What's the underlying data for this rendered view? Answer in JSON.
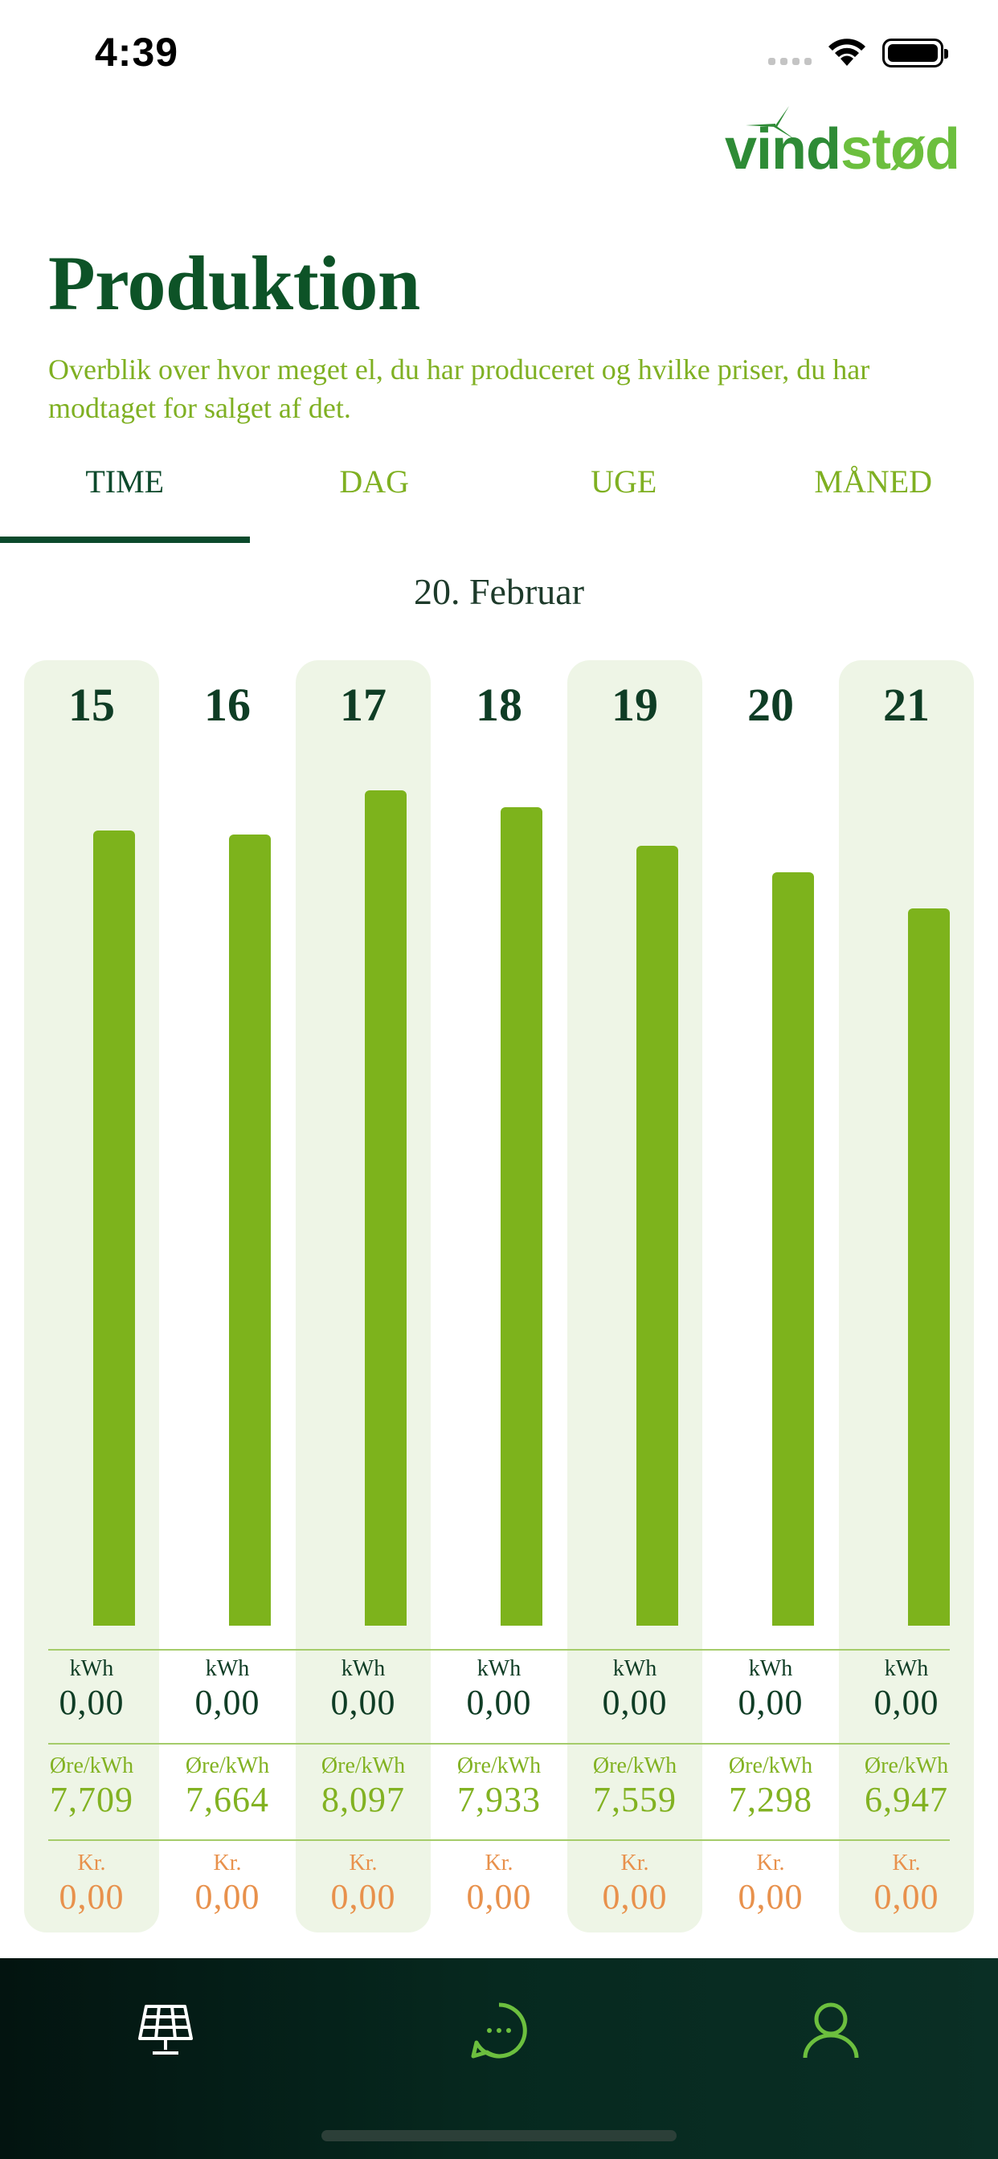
{
  "status_bar": {
    "time": "4:39"
  },
  "brand": {
    "name_part1": "vind",
    "name_part2": "stød",
    "color_dark": "#2e8b36",
    "color_light": "#6cbf3e"
  },
  "header": {
    "title": "Produktion",
    "subtitle": "Overblik over hvor meget el, du har produceret og hvilke priser, du har modtaget for salget af det."
  },
  "tabs": [
    {
      "label": "TIME",
      "active": true
    },
    {
      "label": "DAG",
      "active": false
    },
    {
      "label": "UGE",
      "active": false
    },
    {
      "label": "MÅNED",
      "active": false
    }
  ],
  "date_label": "20. Februar",
  "chart_data": {
    "type": "bar",
    "categories": [
      "15",
      "16",
      "17",
      "18",
      "19",
      "20",
      "21"
    ],
    "series": [
      {
        "values": [
          7.709,
          7.664,
          8.097,
          7.933,
          7.559,
          7.298,
          6.947
        ]
      }
    ]
  },
  "table": {
    "kwh_unit": "kWh",
    "price_unit": "Øre/kWh",
    "kr_unit": "Kr.",
    "kwh_values": [
      "0,00",
      "0,00",
      "0,00",
      "0,00",
      "0,00",
      "0,00",
      "0,00"
    ],
    "price_values": [
      "7,709",
      "7,664",
      "8,097",
      "7,933",
      "7,559",
      "7,298",
      "6,947"
    ],
    "kr_values": [
      "0,00",
      "0,00",
      "0,00",
      "0,00",
      "0,00",
      "0,00",
      "0,00"
    ]
  },
  "bottom_nav": {
    "items": [
      {
        "icon": "solar-panel-icon",
        "active": true
      },
      {
        "icon": "chat-bubble-icon",
        "active": false
      },
      {
        "icon": "user-icon",
        "active": false
      }
    ]
  },
  "colors": {
    "title": "#0d5327",
    "accent_green": "#7db31c",
    "column_shade": "#eef5e6",
    "kr_orange": "#e8914c",
    "nav_background": "#06291f"
  }
}
